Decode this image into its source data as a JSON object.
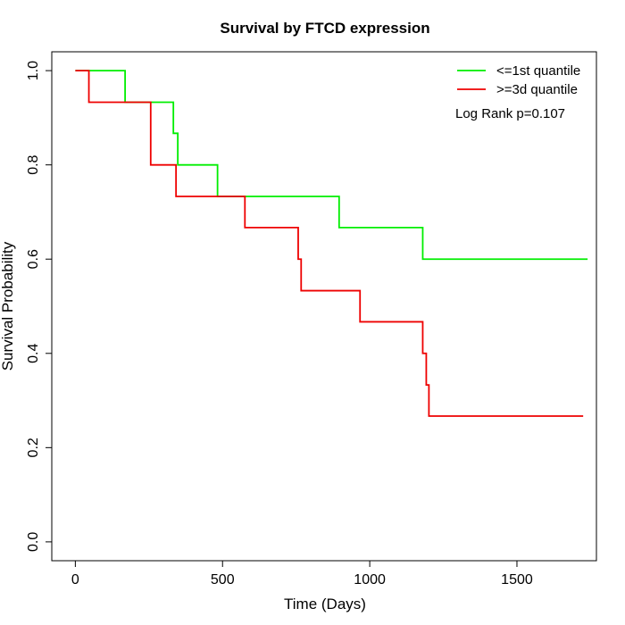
{
  "chart_data": {
    "type": "line",
    "subtype": "kaplan-meier step",
    "title": "Survival by FTCD expression",
    "xlabel": "Time (Days)",
    "ylabel": "Survival Probability",
    "xlim": [
      -80,
      1770
    ],
    "ylim": [
      -0.04,
      1.04
    ],
    "xticks": [
      0,
      500,
      1000,
      1500
    ],
    "yticks": [
      0.0,
      0.2,
      0.4,
      0.6,
      0.8,
      1.0
    ],
    "xtick_labels": [
      "0",
      "500",
      "1000",
      "1500"
    ],
    "ytick_labels": [
      "0.0",
      "0.2",
      "0.4",
      "0.6",
      "0.8",
      "1.0"
    ],
    "grid": false,
    "legend_position": "top-right",
    "annotation": "Log Rank p=0.107",
    "series": [
      {
        "name": "<=1st quantile",
        "color": "#00ee00",
        "x": [
          0,
          169,
          333,
          348,
          483,
          896,
          1180,
          1740
        ],
        "y": [
          1.0,
          0.933,
          0.867,
          0.8,
          0.733,
          0.667,
          0.6,
          0.6
        ]
      },
      {
        "name": ">=3d quantile",
        "color": "#ee0000",
        "x": [
          0,
          46,
          256,
          342,
          576,
          757,
          767,
          967,
          1180,
          1192,
          1201,
          1725
        ],
        "y": [
          1.0,
          0.933,
          0.8,
          0.733,
          0.667,
          0.6,
          0.533,
          0.467,
          0.4,
          0.333,
          0.267,
          0.267
        ]
      }
    ]
  }
}
